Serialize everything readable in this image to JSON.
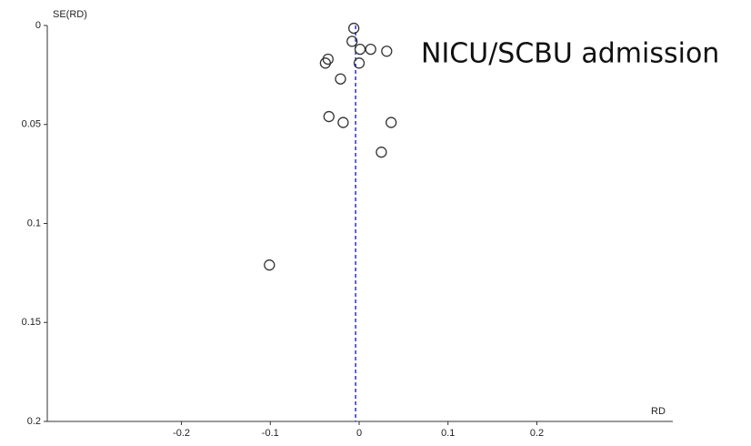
{
  "chart_data": {
    "type": "scatter",
    "annotation": "NICU/SCBU admission",
    "y_label": "SE(RD)",
    "x_label": "RD",
    "x": [
      -0.006,
      -0.008,
      0.001,
      0.013,
      0.031,
      -0.035,
      -0.038,
      0.0,
      -0.021,
      -0.034,
      -0.018,
      0.036,
      0.025,
      -0.101
    ],
    "values": [
      0.0014,
      0.008,
      0.012,
      0.012,
      0.013,
      0.017,
      0.019,
      0.019,
      0.027,
      0.046,
      0.049,
      0.049,
      0.064,
      0.121
    ],
    "xlim": [
      -0.351,
      0.353
    ],
    "ylim": [
      0,
      0.2
    ],
    "y_inverted": true,
    "xticks": [
      -0.2,
      -0.1,
      0,
      0.1,
      0.2
    ],
    "yticks": [
      0,
      0.05,
      0.1,
      0.15,
      0.2
    ],
    "reference_line": -0.004,
    "reference_color": "#2233cc",
    "marker_color": "#333333"
  }
}
